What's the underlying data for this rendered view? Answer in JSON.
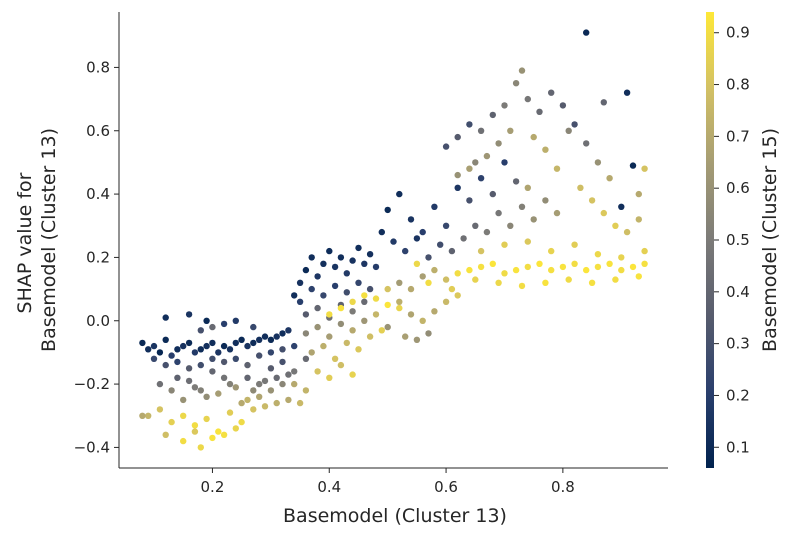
{
  "chart_data": {
    "type": "scatter",
    "title": "",
    "xlabel": "Basemodel (Cluster 13)",
    "ylabel_lines": [
      "SHAP value for",
      "Basemodel (Cluster 13)"
    ],
    "colorbar_label": "Basemodel (Cluster 15)",
    "xlim": [
      0.04,
      0.98
    ],
    "ylim": [
      -0.465,
      0.975
    ],
    "xticks": [
      0.2,
      0.4,
      0.6,
      0.8
    ],
    "xtick_labels": [
      "0.2",
      "0.4",
      "0.6",
      "0.8"
    ],
    "yticks": [
      -0.4,
      -0.2,
      0.0,
      0.2,
      0.4,
      0.6,
      0.8
    ],
    "ytick_labels": [
      "−0.4",
      "−0.2",
      "0.0",
      "0.2",
      "0.4",
      "0.6",
      "0.8"
    ],
    "color_range": [
      0.06,
      0.94
    ],
    "colorbar_ticks": [
      0.1,
      0.2,
      0.3,
      0.4,
      0.5,
      0.6,
      0.7,
      0.8,
      0.9
    ],
    "colorbar_tick_labels": [
      "0.1",
      "0.2",
      "0.3",
      "0.4",
      "0.5",
      "0.6",
      "0.7",
      "0.8",
      "0.9"
    ],
    "colormap": "cividis",
    "colormap_stops": [
      "#00224e",
      "#2a3f6d",
      "#575c6d",
      "#7c7b78",
      "#a59c74",
      "#d3c164",
      "#fee838"
    ],
    "points": [
      [
        0.08,
        -0.07,
        0.1
      ],
      [
        0.09,
        -0.09,
        0.12
      ],
      [
        0.1,
        -0.08,
        0.15
      ],
      [
        0.11,
        -0.1,
        0.08
      ],
      [
        0.12,
        -0.06,
        0.1
      ],
      [
        0.13,
        -0.11,
        0.2
      ],
      [
        0.14,
        -0.09,
        0.12
      ],
      [
        0.15,
        -0.08,
        0.14
      ],
      [
        0.16,
        -0.07,
        0.1
      ],
      [
        0.17,
        -0.1,
        0.18
      ],
      [
        0.18,
        -0.09,
        0.11
      ],
      [
        0.19,
        -0.08,
        0.13
      ],
      [
        0.2,
        -0.07,
        0.12
      ],
      [
        0.21,
        -0.1,
        0.16
      ],
      [
        0.22,
        -0.08,
        0.1
      ],
      [
        0.23,
        -0.09,
        0.14
      ],
      [
        0.24,
        -0.07,
        0.12
      ],
      [
        0.25,
        -0.06,
        0.1
      ],
      [
        0.26,
        -0.08,
        0.15
      ],
      [
        0.27,
        -0.07,
        0.11
      ],
      [
        0.28,
        -0.06,
        0.13
      ],
      [
        0.29,
        -0.05,
        0.12
      ],
      [
        0.3,
        -0.06,
        0.1
      ],
      [
        0.31,
        -0.05,
        0.14
      ],
      [
        0.32,
        -0.04,
        0.12
      ],
      [
        0.33,
        -0.03,
        0.16
      ],
      [
        0.1,
        -0.12,
        0.25
      ],
      [
        0.12,
        -0.14,
        0.3
      ],
      [
        0.14,
        -0.13,
        0.22
      ],
      [
        0.16,
        -0.15,
        0.35
      ],
      [
        0.18,
        -0.14,
        0.28
      ],
      [
        0.2,
        -0.16,
        0.4
      ],
      [
        0.22,
        -0.13,
        0.33
      ],
      [
        0.24,
        -0.12,
        0.26
      ],
      [
        0.26,
        -0.14,
        0.38
      ],
      [
        0.28,
        -0.11,
        0.3
      ],
      [
        0.3,
        -0.1,
        0.24
      ],
      [
        0.32,
        -0.09,
        0.29
      ],
      [
        0.34,
        -0.08,
        0.22
      ],
      [
        0.11,
        -0.2,
        0.45
      ],
      [
        0.13,
        -0.22,
        0.55
      ],
      [
        0.15,
        -0.25,
        0.6
      ],
      [
        0.17,
        -0.21,
        0.5
      ],
      [
        0.19,
        -0.24,
        0.58
      ],
      [
        0.21,
        -0.23,
        0.65
      ],
      [
        0.23,
        -0.2,
        0.52
      ],
      [
        0.25,
        -0.26,
        0.7
      ],
      [
        0.27,
        -0.22,
        0.56
      ],
      [
        0.29,
        -0.19,
        0.48
      ],
      [
        0.31,
        -0.18,
        0.42
      ],
      [
        0.33,
        -0.17,
        0.45
      ],
      [
        0.09,
        -0.3,
        0.75
      ],
      [
        0.11,
        -0.28,
        0.8
      ],
      [
        0.13,
        -0.32,
        0.85
      ],
      [
        0.15,
        -0.3,
        0.88
      ],
      [
        0.17,
        -0.33,
        0.9
      ],
      [
        0.19,
        -0.31,
        0.86
      ],
      [
        0.21,
        -0.35,
        0.92
      ],
      [
        0.23,
        -0.29,
        0.84
      ],
      [
        0.25,
        -0.32,
        0.89
      ],
      [
        0.27,
        -0.28,
        0.8
      ],
      [
        0.29,
        -0.27,
        0.76
      ],
      [
        0.31,
        -0.26,
        0.72
      ],
      [
        0.33,
        -0.25,
        0.7
      ],
      [
        0.15,
        -0.38,
        0.9
      ],
      [
        0.18,
        -0.4,
        0.88
      ],
      [
        0.2,
        -0.37,
        0.92
      ],
      [
        0.22,
        -0.36,
        0.91
      ],
      [
        0.24,
        -0.34,
        0.87
      ],
      [
        0.17,
        -0.35,
        0.82
      ],
      [
        0.12,
        -0.36,
        0.78
      ],
      [
        0.08,
        -0.3,
        0.7
      ],
      [
        0.26,
        -0.18,
        0.4
      ],
      [
        0.28,
        -0.2,
        0.5
      ],
      [
        0.3,
        -0.15,
        0.35
      ],
      [
        0.32,
        -0.13,
        0.3
      ],
      [
        0.14,
        -0.18,
        0.38
      ],
      [
        0.16,
        -0.19,
        0.44
      ],
      [
        0.18,
        -0.22,
        0.52
      ],
      [
        0.2,
        -0.12,
        0.28
      ],
      [
        0.22,
        -0.18,
        0.46
      ],
      [
        0.24,
        -0.21,
        0.62
      ],
      [
        0.26,
        -0.25,
        0.74
      ],
      [
        0.28,
        -0.24,
        0.68
      ],
      [
        0.3,
        -0.22,
        0.6
      ],
      [
        0.32,
        -0.2,
        0.55
      ],
      [
        0.34,
        -0.16,
        0.48
      ],
      [
        0.36,
        -0.12,
        0.42
      ],
      [
        0.12,
        0.01,
        0.12
      ],
      [
        0.16,
        0.02,
        0.15
      ],
      [
        0.19,
        0.0,
        0.1
      ],
      [
        0.22,
        -0.01,
        0.2
      ],
      [
        0.24,
        0.0,
        0.18
      ],
      [
        0.27,
        -0.02,
        0.25
      ],
      [
        0.18,
        -0.03,
        0.3
      ],
      [
        0.2,
        -0.02,
        0.42
      ],
      [
        0.34,
        0.08,
        0.12
      ],
      [
        0.35,
        0.12,
        0.14
      ],
      [
        0.36,
        0.16,
        0.1
      ],
      [
        0.37,
        0.2,
        0.12
      ],
      [
        0.38,
        0.14,
        0.16
      ],
      [
        0.39,
        0.18,
        0.13
      ],
      [
        0.4,
        0.22,
        0.11
      ],
      [
        0.41,
        0.17,
        0.15
      ],
      [
        0.42,
        0.2,
        0.12
      ],
      [
        0.43,
        0.15,
        0.18
      ],
      [
        0.44,
        0.19,
        0.14
      ],
      [
        0.45,
        0.23,
        0.12
      ],
      [
        0.46,
        0.18,
        0.16
      ],
      [
        0.47,
        0.21,
        0.13
      ],
      [
        0.48,
        0.17,
        0.19
      ],
      [
        0.35,
        0.06,
        0.2
      ],
      [
        0.37,
        0.1,
        0.22
      ],
      [
        0.39,
        0.08,
        0.25
      ],
      [
        0.41,
        0.11,
        0.2
      ],
      [
        0.43,
        0.09,
        0.28
      ],
      [
        0.45,
        0.12,
        0.24
      ],
      [
        0.47,
        0.1,
        0.3
      ],
      [
        0.36,
        0.02,
        0.35
      ],
      [
        0.38,
        0.04,
        0.4
      ],
      [
        0.4,
        0.01,
        0.45
      ],
      [
        0.42,
        0.05,
        0.38
      ],
      [
        0.44,
        0.03,
        0.5
      ],
      [
        0.46,
        0.06,
        0.42
      ],
      [
        0.36,
        -0.04,
        0.55
      ],
      [
        0.38,
        -0.02,
        0.6
      ],
      [
        0.4,
        -0.05,
        0.65
      ],
      [
        0.42,
        -0.01,
        0.58
      ],
      [
        0.44,
        -0.03,
        0.7
      ],
      [
        0.46,
        0.0,
        0.62
      ],
      [
        0.48,
        0.02,
        0.75
      ],
      [
        0.37,
        -0.1,
        0.68
      ],
      [
        0.39,
        -0.08,
        0.72
      ],
      [
        0.41,
        -0.12,
        0.8
      ],
      [
        0.43,
        -0.07,
        0.76
      ],
      [
        0.45,
        -0.09,
        0.82
      ],
      [
        0.47,
        -0.05,
        0.78
      ],
      [
        0.49,
        -0.03,
        0.85
      ],
      [
        0.38,
        -0.16,
        0.8
      ],
      [
        0.4,
        -0.18,
        0.84
      ],
      [
        0.42,
        -0.14,
        0.78
      ],
      [
        0.44,
        -0.17,
        0.86
      ],
      [
        0.36,
        -0.22,
        0.74
      ],
      [
        0.34,
        -0.2,
        0.7
      ],
      [
        0.35,
        -0.26,
        0.76
      ],
      [
        0.4,
        0.02,
        0.9
      ],
      [
        0.42,
        0.04,
        0.92
      ],
      [
        0.44,
        0.06,
        0.88
      ],
      [
        0.46,
        0.08,
        0.91
      ],
      [
        0.48,
        0.07,
        0.89
      ],
      [
        0.5,
        0.05,
        0.93
      ],
      [
        0.52,
        0.04,
        0.87
      ],
      [
        0.5,
        0.1,
        0.8
      ],
      [
        0.52,
        0.06,
        0.72
      ],
      [
        0.54,
        0.02,
        0.68
      ],
      [
        0.56,
        0.0,
        0.74
      ],
      [
        0.58,
        0.03,
        0.7
      ],
      [
        0.5,
        -0.02,
        0.6
      ],
      [
        0.53,
        -0.05,
        0.66
      ],
      [
        0.55,
        -0.06,
        0.62
      ],
      [
        0.57,
        -0.04,
        0.58
      ],
      [
        0.6,
        0.06,
        0.76
      ],
      [
        0.62,
        0.08,
        0.82
      ],
      [
        0.52,
        0.12,
        0.64
      ],
      [
        0.54,
        0.1,
        0.7
      ],
      [
        0.56,
        0.14,
        0.66
      ],
      [
        0.58,
        0.16,
        0.72
      ],
      [
        0.6,
        0.13,
        0.78
      ],
      [
        0.5,
        0.35,
        0.1
      ],
      [
        0.52,
        0.4,
        0.12
      ],
      [
        0.54,
        0.32,
        0.15
      ],
      [
        0.56,
        0.28,
        0.2
      ],
      [
        0.58,
        0.36,
        0.18
      ],
      [
        0.6,
        0.3,
        0.25
      ],
      [
        0.62,
        0.42,
        0.16
      ],
      [
        0.64,
        0.38,
        0.3
      ],
      [
        0.66,
        0.45,
        0.22
      ],
      [
        0.68,
        0.4,
        0.35
      ],
      [
        0.7,
        0.5,
        0.2
      ],
      [
        0.72,
        0.44,
        0.4
      ],
      [
        0.49,
        0.28,
        0.12
      ],
      [
        0.51,
        0.25,
        0.18
      ],
      [
        0.53,
        0.22,
        0.22
      ],
      [
        0.55,
        0.26,
        0.15
      ],
      [
        0.57,
        0.2,
        0.3
      ],
      [
        0.59,
        0.24,
        0.28
      ],
      [
        0.61,
        0.22,
        0.38
      ],
      [
        0.63,
        0.26,
        0.45
      ],
      [
        0.65,
        0.3,
        0.42
      ],
      [
        0.67,
        0.28,
        0.5
      ],
      [
        0.69,
        0.34,
        0.48
      ],
      [
        0.71,
        0.3,
        0.55
      ],
      [
        0.73,
        0.36,
        0.52
      ],
      [
        0.75,
        0.32,
        0.6
      ],
      [
        0.77,
        0.38,
        0.58
      ],
      [
        0.79,
        0.34,
        0.65
      ],
      [
        0.6,
        0.55,
        0.3
      ],
      [
        0.62,
        0.58,
        0.35
      ],
      [
        0.64,
        0.62,
        0.28
      ],
      [
        0.66,
        0.6,
        0.45
      ],
      [
        0.68,
        0.65,
        0.38
      ],
      [
        0.7,
        0.68,
        0.5
      ],
      [
        0.72,
        0.75,
        0.55
      ],
      [
        0.73,
        0.79,
        0.6
      ],
      [
        0.74,
        0.7,
        0.48
      ],
      [
        0.76,
        0.66,
        0.42
      ],
      [
        0.78,
        0.72,
        0.4
      ],
      [
        0.8,
        0.68,
        0.35
      ],
      [
        0.82,
        0.62,
        0.3
      ],
      [
        0.84,
        0.56,
        0.45
      ],
      [
        0.86,
        0.5,
        0.6
      ],
      [
        0.88,
        0.45,
        0.7
      ],
      [
        0.84,
        0.91,
        0.1
      ],
      [
        0.91,
        0.72,
        0.12
      ],
      [
        0.87,
        0.69,
        0.4
      ],
      [
        0.81,
        0.6,
        0.55
      ],
      [
        0.65,
        0.5,
        0.55
      ],
      [
        0.67,
        0.52,
        0.62
      ],
      [
        0.69,
        0.56,
        0.58
      ],
      [
        0.71,
        0.6,
        0.65
      ],
      [
        0.75,
        0.58,
        0.7
      ],
      [
        0.77,
        0.54,
        0.72
      ],
      [
        0.79,
        0.48,
        0.75
      ],
      [
        0.83,
        0.42,
        0.78
      ],
      [
        0.85,
        0.38,
        0.8
      ],
      [
        0.87,
        0.34,
        0.82
      ],
      [
        0.89,
        0.3,
        0.84
      ],
      [
        0.91,
        0.28,
        0.78
      ],
      [
        0.93,
        0.32,
        0.74
      ],
      [
        0.94,
        0.48,
        0.8
      ],
      [
        0.93,
        0.4,
        0.7
      ],
      [
        0.92,
        0.49,
        0.1
      ],
      [
        0.9,
        0.36,
        0.12
      ],
      [
        0.62,
        0.46,
        0.6
      ],
      [
        0.64,
        0.48,
        0.66
      ],
      [
        0.74,
        0.42,
        0.68
      ],
      [
        0.62,
        0.15,
        0.9
      ],
      [
        0.64,
        0.16,
        0.92
      ],
      [
        0.66,
        0.17,
        0.91
      ],
      [
        0.68,
        0.18,
        0.93
      ],
      [
        0.7,
        0.15,
        0.89
      ],
      [
        0.72,
        0.16,
        0.92
      ],
      [
        0.74,
        0.17,
        0.9
      ],
      [
        0.76,
        0.18,
        0.93
      ],
      [
        0.78,
        0.16,
        0.91
      ],
      [
        0.8,
        0.17,
        0.92
      ],
      [
        0.82,
        0.18,
        0.9
      ],
      [
        0.84,
        0.16,
        0.93
      ],
      [
        0.86,
        0.17,
        0.91
      ],
      [
        0.88,
        0.18,
        0.92
      ],
      [
        0.9,
        0.16,
        0.9
      ],
      [
        0.92,
        0.17,
        0.93
      ],
      [
        0.94,
        0.18,
        0.91
      ],
      [
        0.66,
        0.22,
        0.8
      ],
      [
        0.7,
        0.24,
        0.84
      ],
      [
        0.74,
        0.25,
        0.82
      ],
      [
        0.78,
        0.22,
        0.86
      ],
      [
        0.82,
        0.24,
        0.84
      ],
      [
        0.86,
        0.21,
        0.88
      ],
      [
        0.9,
        0.2,
        0.86
      ],
      [
        0.94,
        0.22,
        0.85
      ],
      [
        0.93,
        0.14,
        0.92
      ],
      [
        0.89,
        0.13,
        0.9
      ],
      [
        0.85,
        0.12,
        0.91
      ],
      [
        0.81,
        0.13,
        0.89
      ],
      [
        0.77,
        0.12,
        0.92
      ],
      [
        0.73,
        0.11,
        0.9
      ],
      [
        0.69,
        0.12,
        0.88
      ],
      [
        0.65,
        0.13,
        0.86
      ],
      [
        0.61,
        0.1,
        0.84
      ],
      [
        0.55,
        0.18,
        0.88
      ],
      [
        0.57,
        0.12,
        0.9
      ]
    ]
  }
}
